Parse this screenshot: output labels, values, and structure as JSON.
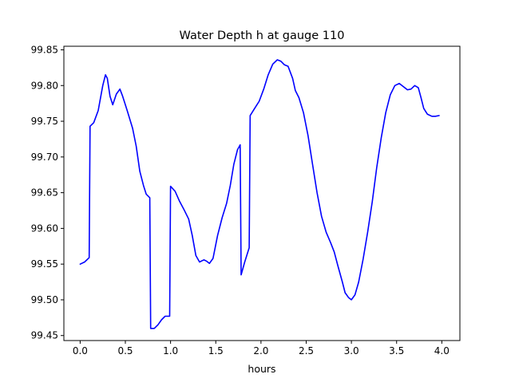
{
  "chart_data": {
    "type": "line",
    "title": "Water Depth h at gauge 110",
    "xlabel": "hours",
    "ylabel": "",
    "xlim": [
      -0.18,
      4.2
    ],
    "ylim": [
      99.443,
      99.855
    ],
    "xticks": [
      0.0,
      0.5,
      1.0,
      1.5,
      2.0,
      2.5,
      3.0,
      3.5,
      4.0
    ],
    "xtick_labels": [
      "0.0",
      "0.5",
      "1.0",
      "1.5",
      "2.0",
      "2.5",
      "3.0",
      "3.5",
      "4.0"
    ],
    "yticks": [
      99.45,
      99.5,
      99.55,
      99.6,
      99.65,
      99.7,
      99.75,
      99.8,
      99.85
    ],
    "ytick_labels": [
      "99.45",
      "99.50",
      "99.55",
      "99.60",
      "99.65",
      "99.70",
      "99.75",
      "99.80",
      "99.85"
    ],
    "grid": false,
    "legend": false,
    "series": [
      {
        "color": "#0000ff",
        "points": [
          [
            0.0,
            99.55
          ],
          [
            0.05,
            99.553
          ],
          [
            0.1,
            99.559
          ],
          [
            0.11,
            99.743
          ],
          [
            0.15,
            99.748
          ],
          [
            0.2,
            99.765
          ],
          [
            0.25,
            99.8
          ],
          [
            0.28,
            99.815
          ],
          [
            0.3,
            99.81
          ],
          [
            0.33,
            99.785
          ],
          [
            0.36,
            99.773
          ],
          [
            0.4,
            99.788
          ],
          [
            0.44,
            99.795
          ],
          [
            0.47,
            99.785
          ],
          [
            0.52,
            99.765
          ],
          [
            0.58,
            99.74
          ],
          [
            0.62,
            99.715
          ],
          [
            0.66,
            99.68
          ],
          [
            0.7,
            99.66
          ],
          [
            0.73,
            99.648
          ],
          [
            0.77,
            99.643
          ],
          [
            0.78,
            99.46
          ],
          [
            0.82,
            99.46
          ],
          [
            0.86,
            99.465
          ],
          [
            0.9,
            99.472
          ],
          [
            0.94,
            99.477
          ],
          [
            0.99,
            99.477
          ],
          [
            1.0,
            99.659
          ],
          [
            1.05,
            99.652
          ],
          [
            1.1,
            99.638
          ],
          [
            1.15,
            99.626
          ],
          [
            1.2,
            99.613
          ],
          [
            1.24,
            99.59
          ],
          [
            1.28,
            99.562
          ],
          [
            1.32,
            99.553
          ],
          [
            1.37,
            99.556
          ],
          [
            1.4,
            99.554
          ],
          [
            1.43,
            99.551
          ],
          [
            1.47,
            99.558
          ],
          [
            1.52,
            99.59
          ],
          [
            1.57,
            99.615
          ],
          [
            1.62,
            99.635
          ],
          [
            1.66,
            99.66
          ],
          [
            1.7,
            99.69
          ],
          [
            1.74,
            99.71
          ],
          [
            1.77,
            99.717
          ],
          [
            1.78,
            99.535
          ],
          [
            1.82,
            99.553
          ],
          [
            1.87,
            99.573
          ],
          [
            1.88,
            99.758
          ],
          [
            1.93,
            99.768
          ],
          [
            1.98,
            99.778
          ],
          [
            2.03,
            99.795
          ],
          [
            2.08,
            99.815
          ],
          [
            2.13,
            99.83
          ],
          [
            2.18,
            99.836
          ],
          [
            2.22,
            99.834
          ],
          [
            2.26,
            99.829
          ],
          [
            2.3,
            99.827
          ],
          [
            2.35,
            99.81
          ],
          [
            2.38,
            99.793
          ],
          [
            2.42,
            99.783
          ],
          [
            2.47,
            99.762
          ],
          [
            2.52,
            99.73
          ],
          [
            2.57,
            99.69
          ],
          [
            2.62,
            99.65
          ],
          [
            2.67,
            99.617
          ],
          [
            2.72,
            99.595
          ],
          [
            2.77,
            99.58
          ],
          [
            2.81,
            99.567
          ],
          [
            2.85,
            99.548
          ],
          [
            2.9,
            99.525
          ],
          [
            2.93,
            99.51
          ],
          [
            2.97,
            99.503
          ],
          [
            3.0,
            99.5
          ],
          [
            3.04,
            99.507
          ],
          [
            3.08,
            99.525
          ],
          [
            3.13,
            99.557
          ],
          [
            3.18,
            99.595
          ],
          [
            3.23,
            99.637
          ],
          [
            3.28,
            99.685
          ],
          [
            3.33,
            99.727
          ],
          [
            3.38,
            99.762
          ],
          [
            3.43,
            99.787
          ],
          [
            3.48,
            99.8
          ],
          [
            3.53,
            99.803
          ],
          [
            3.57,
            99.799
          ],
          [
            3.62,
            99.794
          ],
          [
            3.66,
            99.795
          ],
          [
            3.7,
            99.8
          ],
          [
            3.74,
            99.797
          ],
          [
            3.77,
            99.783
          ],
          [
            3.8,
            99.768
          ],
          [
            3.84,
            99.76
          ],
          [
            3.89,
            99.757
          ],
          [
            3.93,
            99.757
          ],
          [
            3.97,
            99.758
          ]
        ]
      }
    ]
  }
}
